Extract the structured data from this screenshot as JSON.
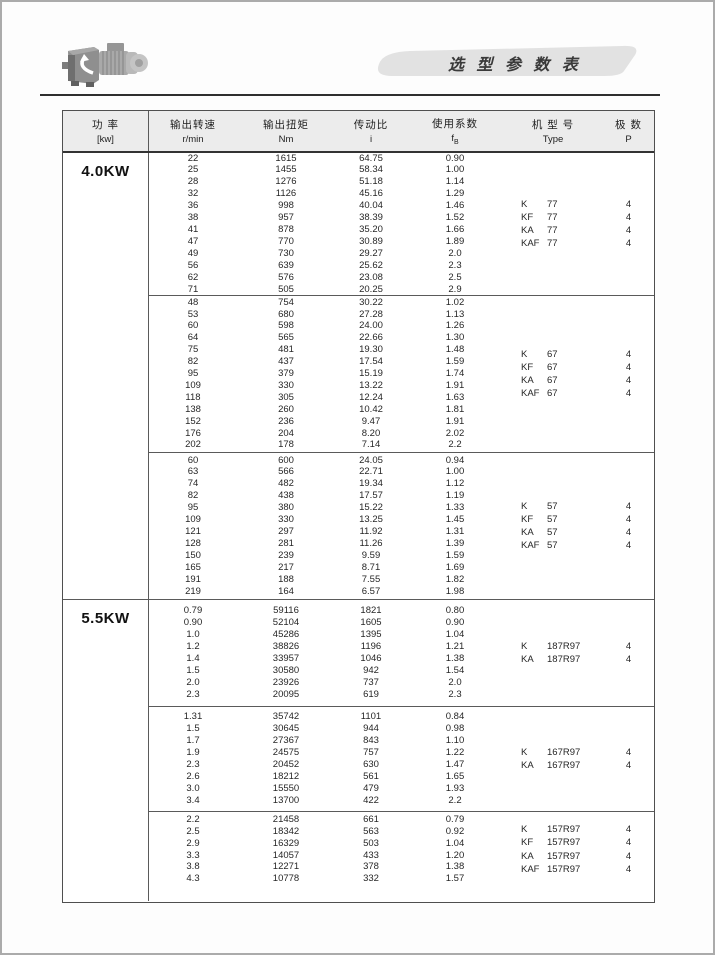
{
  "header": {
    "title": "选 型 参 数 表",
    "logo_icon": "gearmotor-photo"
  },
  "table": {
    "columns": {
      "power": {
        "zh": "功 率",
        "unit": "[kw]"
      },
      "speed": {
        "zh": "输出转速",
        "unit": "r/min"
      },
      "torque": {
        "zh": "输出扭矩",
        "unit": "Nm"
      },
      "ratio": {
        "zh": "传动比",
        "unit": "i"
      },
      "factor": {
        "zh": "使用系数",
        "unit_main": "f",
        "unit_sub": "B"
      },
      "type": {
        "zh": "机 型 号",
        "unit": "Type"
      },
      "poles": {
        "zh": "极 数",
        "unit": "P"
      }
    },
    "sections": [
      {
        "power": "4.0KW",
        "blocks": [
          {
            "speed": [
              "22",
              "25",
              "28",
              "32",
              "36",
              "38",
              "41",
              "47",
              "49",
              "56",
              "62",
              "71"
            ],
            "torque": [
              "1615",
              "1455",
              "1276",
              "1126",
              "998",
              "957",
              "878",
              "770",
              "730",
              "639",
              "576",
              "505"
            ],
            "ratio": [
              "64.75",
              "58.34",
              "51.18",
              "45.16",
              "40.04",
              "38.39",
              "35.20",
              "30.89",
              "29.27",
              "25.62",
              "23.08",
              "20.25"
            ],
            "factor": [
              "0.90",
              "1.00",
              "1.14",
              "1.29",
              "1.46",
              "1.52",
              "1.66",
              "1.89",
              "2.0",
              "2.3",
              "2.5",
              "2.9"
            ],
            "types": [
              {
                "label": "K 77",
                "poles": "4"
              },
              {
                "label": "KF 77",
                "poles": "4"
              },
              {
                "label": "KA 77",
                "poles": "4"
              },
              {
                "label": "KAF 77",
                "poles": "4"
              }
            ]
          },
          {
            "speed": [
              "48",
              "53",
              "60",
              "64",
              "75",
              "82",
              "95",
              "109",
              "118",
              "138",
              "152",
              "176",
              "202"
            ],
            "torque": [
              "754",
              "680",
              "598",
              "565",
              "481",
              "437",
              "379",
              "330",
              "305",
              "260",
              "236",
              "204",
              "178"
            ],
            "ratio": [
              "30.22",
              "27.28",
              "24.00",
              "22.66",
              "19.30",
              "17.54",
              "15.19",
              "13.22",
              "12.24",
              "10.42",
              "9.47",
              "8.20",
              "7.14"
            ],
            "factor": [
              "1.02",
              "1.13",
              "1.26",
              "1.30",
              "1.48",
              "1.59",
              "1.74",
              "1.91",
              "1.63",
              "1.81",
              "1.91",
              "2.02",
              "2.2"
            ],
            "types": [
              {
                "label": "K 67",
                "poles": "4"
              },
              {
                "label": "KF 67",
                "poles": "4"
              },
              {
                "label": "KA 67",
                "poles": "4"
              },
              {
                "label": "KAF 67",
                "poles": "4"
              }
            ]
          },
          {
            "speed": [
              "60",
              "63",
              "74",
              "82",
              "95",
              "109",
              "121",
              "128",
              "150",
              "165",
              "191",
              "219"
            ],
            "torque": [
              "600",
              "566",
              "482",
              "438",
              "380",
              "330",
              "297",
              "281",
              "239",
              "217",
              "188",
              "164"
            ],
            "ratio": [
              "24.05",
              "22.71",
              "19.34",
              "17.57",
              "15.22",
              "13.25",
              "11.92",
              "11.26",
              "9.59",
              "8.71",
              "7.55",
              "6.57"
            ],
            "factor": [
              "0.94",
              "1.00",
              "1.12",
              "1.19",
              "1.33",
              "1.45",
              "1.31",
              "1.39",
              "1.59",
              "1.69",
              "1.82",
              "1.98"
            ],
            "types": [
              {
                "label": "K 57",
                "poles": "4"
              },
              {
                "label": "KF 57",
                "poles": "4"
              },
              {
                "label": "KA 57",
                "poles": "4"
              },
              {
                "label": "KAF 57",
                "poles": "4"
              }
            ]
          }
        ]
      },
      {
        "power": "5.5KW",
        "blocks": [
          {
            "speed": [
              "0.79",
              "0.90",
              "1.0",
              "1.2",
              "1.4",
              "1.5",
              "2.0",
              "2.3"
            ],
            "torque": [
              "59116",
              "52104",
              "45286",
              "38826",
              "33957",
              "30580",
              "23926",
              "20095"
            ],
            "ratio": [
              "1821",
              "1605",
              "1395",
              "1196",
              "1046",
              "942",
              "737",
              "619"
            ],
            "factor": [
              "0.80",
              "0.90",
              "1.04",
              "1.21",
              "1.38",
              "1.54",
              "2.0",
              "2.3"
            ],
            "types": [
              {
                "label": "K 187R97",
                "poles": "4"
              },
              {
                "label": "KA187R97",
                "poles": "4"
              }
            ]
          },
          {
            "speed": [
              "1.31",
              "1.5",
              "1.7",
              "1.9",
              "2.3",
              "2.6",
              "3.0",
              "3.4"
            ],
            "torque": [
              "35742",
              "30645",
              "27367",
              "24575",
              "20452",
              "18212",
              "15550",
              "13700"
            ],
            "ratio": [
              "1101",
              "944",
              "843",
              "757",
              "630",
              "561",
              "479",
              "422"
            ],
            "factor": [
              "0.84",
              "0.98",
              "1.10",
              "1.22",
              "1.47",
              "1.65",
              "1.93",
              "2.2"
            ],
            "types": [
              {
                "label": "K 167R97",
                "poles": "4"
              },
              {
                "label": "KA167R97",
                "poles": "4"
              }
            ]
          },
          {
            "speed": [
              "2.2",
              "2.5",
              "2.9",
              "3.3",
              "3.8",
              "4.3"
            ],
            "torque": [
              "21458",
              "18342",
              "16329",
              "14057",
              "12271",
              "10778"
            ],
            "ratio": [
              "661",
              "563",
              "503",
              "433",
              "378",
              "332"
            ],
            "factor": [
              "0.79",
              "0.92",
              "1.04",
              "1.20",
              "1.38",
              "1.57"
            ],
            "types": [
              {
                "label": "K 157R97",
                "poles": "4"
              },
              {
                "label": "KF 157R97",
                "poles": "4"
              },
              {
                "label": "KA 157R97",
                "poles": "4"
              },
              {
                "label": "KAF157R97",
                "poles": "4"
              }
            ]
          }
        ]
      }
    ]
  }
}
